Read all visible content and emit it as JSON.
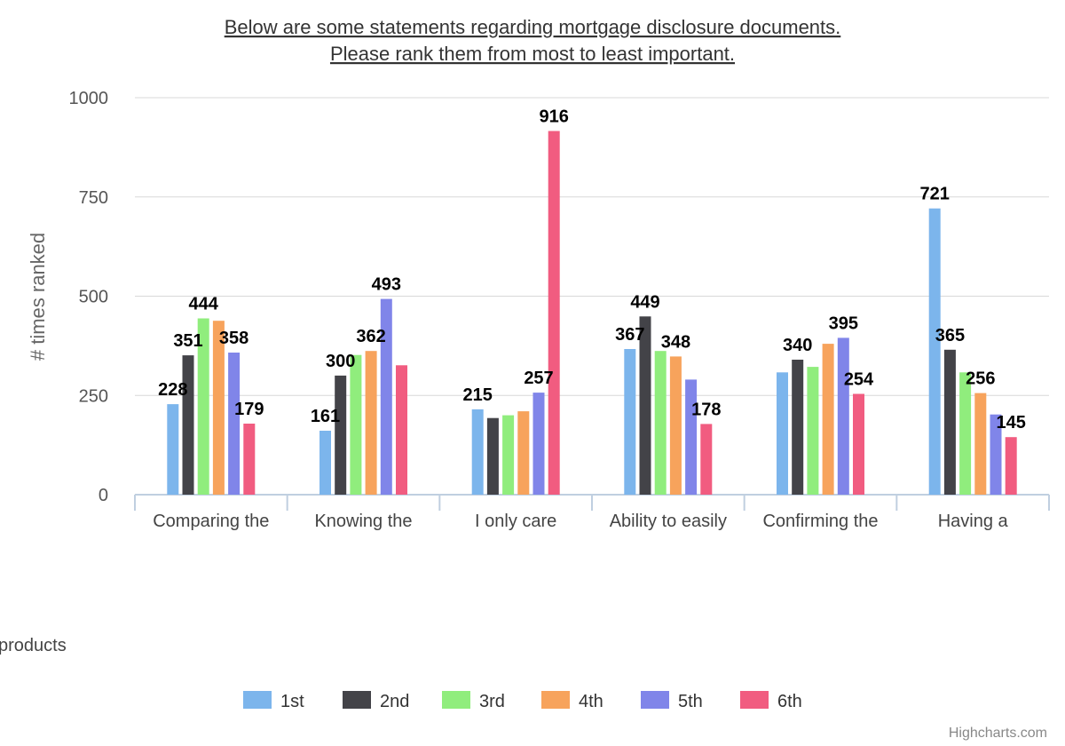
{
  "chart_data": {
    "type": "bar",
    "title": "Below are some statements regarding mortgage disclosure documents.",
    "subtitle": "Please rank them from most to least important.",
    "ylabel": "# times ranked",
    "xlabel": "",
    "ylim": [
      0,
      1000
    ],
    "yticks": [
      0,
      250,
      500,
      750,
      1000
    ],
    "grid": true,
    "legend_position": "bottom",
    "categories": [
      "Comparing the",
      "Knowing the",
      "I only care",
      "Ability to easily",
      "Confirming the",
      "Having a"
    ],
    "overflow_text": [
      "products"
    ],
    "series": [
      {
        "name": "1st",
        "color": "#7cb5ec",
        "values": [
          228,
          161,
          215,
          367,
          308,
          721
        ],
        "labels": [
          true,
          true,
          true,
          true,
          false,
          true
        ]
      },
      {
        "name": "2nd",
        "color": "#434348",
        "values": [
          351,
          300,
          193,
          449,
          340,
          365
        ],
        "labels": [
          true,
          true,
          false,
          true,
          true,
          true
        ]
      },
      {
        "name": "3rd",
        "color": "#90ed7d",
        "values": [
          444,
          352,
          200,
          362,
          322,
          308
        ],
        "labels": [
          true,
          false,
          false,
          false,
          false,
          false
        ]
      },
      {
        "name": "4th",
        "color": "#f7a35c",
        "values": [
          438,
          362,
          210,
          348,
          380,
          256
        ],
        "labels": [
          false,
          true,
          false,
          true,
          false,
          true
        ]
      },
      {
        "name": "5th",
        "color": "#8085e9",
        "values": [
          358,
          493,
          257,
          290,
          395,
          202
        ],
        "labels": [
          true,
          true,
          true,
          false,
          true,
          false
        ]
      },
      {
        "name": "6th",
        "color": "#f15c80",
        "values": [
          179,
          326,
          916,
          178,
          254,
          145
        ],
        "labels": [
          true,
          false,
          true,
          true,
          true,
          true
        ]
      }
    ]
  },
  "credits": "Highcharts.com"
}
